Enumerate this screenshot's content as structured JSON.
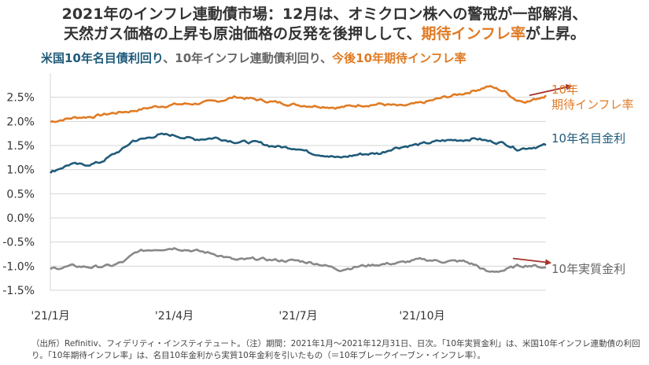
{
  "title": {
    "line1": "2021年のインフレ連動債市場：12月は、オミクロン株への警戒が一部解消、",
    "line2_pre": "天然ガス価格の上昇も原油価格の反発を後押しして、",
    "line2_hl": "期待インフレ率",
    "line2_post": "が上昇。"
  },
  "legend": {
    "nominal": "米国10年名目債利回り",
    "sep1": "、",
    "real": "10年インフレ連動債利回り",
    "sep2": "、",
    "bei": "今後10年期待インフレ率"
  },
  "chart_data": {
    "type": "line",
    "ylim": [
      -1.5,
      3.0
    ],
    "yticks": [
      "2.5%",
      "2.0%",
      "1.5%",
      "1.0%",
      "0.5%",
      "0.0%",
      "-0.5%",
      "-1.0%",
      "-1.5%"
    ],
    "yticks_values": [
      2.5,
      2.0,
      1.5,
      1.0,
      0.5,
      0.0,
      -0.5,
      -1.0,
      -1.5
    ],
    "xticks": [
      "'21/1月",
      "'21/4月",
      "'21/7月",
      "'21/10月"
    ],
    "xticks_months": [
      0,
      3,
      6,
      9
    ],
    "x_unit": "month index (0 = 2021-01-01, 12 = 2021-12-31)",
    "grid": "horizontal",
    "series": [
      {
        "name": "期待インフレ率",
        "label": "10年\n期待インフレ率",
        "label_line1": "10年",
        "label_line2": "期待インフレ率",
        "color": "#e07b24",
        "x": [
          0,
          0.3,
          0.6,
          1,
          1.5,
          2,
          2.5,
          3,
          3.5,
          4,
          4.5,
          5,
          5.5,
          6,
          6.5,
          7,
          7.5,
          8,
          8.5,
          9,
          9.5,
          10,
          10.3,
          10.6,
          11,
          11.3,
          11.6,
          12
        ],
        "values": [
          1.99,
          2.04,
          2.08,
          2.1,
          2.17,
          2.22,
          2.3,
          2.35,
          2.37,
          2.41,
          2.51,
          2.45,
          2.39,
          2.34,
          2.32,
          2.29,
          2.34,
          2.36,
          2.31,
          2.38,
          2.49,
          2.58,
          2.65,
          2.73,
          2.62,
          2.44,
          2.42,
          2.54
        ]
      },
      {
        "name": "10年名目金利",
        "label": "10年名目金利",
        "color": "#1f5b79",
        "x": [
          0,
          0.2,
          0.5,
          0.8,
          1.2,
          1.5,
          1.8,
          2,
          2.3,
          2.6,
          3,
          3.5,
          4,
          4.5,
          5,
          5.3,
          5.7,
          6,
          6.3,
          6.7,
          7,
          7.5,
          8,
          8.3,
          8.7,
          9,
          9.5,
          10,
          10.3,
          10.6,
          11,
          11.3,
          11.7,
          12
        ],
        "values": [
          0.93,
          1.02,
          1.12,
          1.09,
          1.15,
          1.3,
          1.45,
          1.6,
          1.64,
          1.72,
          1.71,
          1.63,
          1.66,
          1.58,
          1.56,
          1.5,
          1.46,
          1.45,
          1.35,
          1.3,
          1.24,
          1.32,
          1.34,
          1.45,
          1.5,
          1.53,
          1.6,
          1.62,
          1.65,
          1.59,
          1.55,
          1.43,
          1.47,
          1.51
        ]
      },
      {
        "name": "10年実質金利",
        "label": "10年実質金利",
        "color": "#888888",
        "x": [
          0,
          0.5,
          1,
          1.5,
          1.8,
          2.1,
          2.5,
          3,
          3.5,
          4,
          4.5,
          5,
          5.5,
          6,
          6.5,
          7,
          7.5,
          8,
          8.5,
          9,
          9.5,
          10,
          10.3,
          10.6,
          11,
          11.3,
          11.6,
          12
        ],
        "values": [
          -1.06,
          -1.0,
          -1.02,
          -0.99,
          -0.9,
          -0.7,
          -0.65,
          -0.62,
          -0.68,
          -0.75,
          -0.88,
          -0.85,
          -0.88,
          -0.89,
          -0.95,
          -1.07,
          -1.0,
          -0.96,
          -0.93,
          -0.86,
          -0.9,
          -0.9,
          -0.98,
          -1.13,
          -1.08,
          -1.0,
          -0.98,
          -1.03
        ]
      }
    ],
    "arrows": [
      {
        "series": 0,
        "from": [
          11.6,
          2.54
        ],
        "to": [
          12.6,
          2.73
        ]
      },
      {
        "series": 2,
        "from": [
          11.2,
          -0.84
        ],
        "to": [
          12.1,
          -0.93
        ]
      }
    ]
  },
  "footnote": "（出所）Refinitiv、フィデリティ・インスティテュート。（注）期間：2021年1月〜2021年12月31日、日次。「10年実質金利」は、米国10年インフレ連動債の利回り。「10年期待インフレ率」は、名目10年金利から実質10年金利を引いたもの（＝10年ブレークイーブン・インフレ率）。"
}
